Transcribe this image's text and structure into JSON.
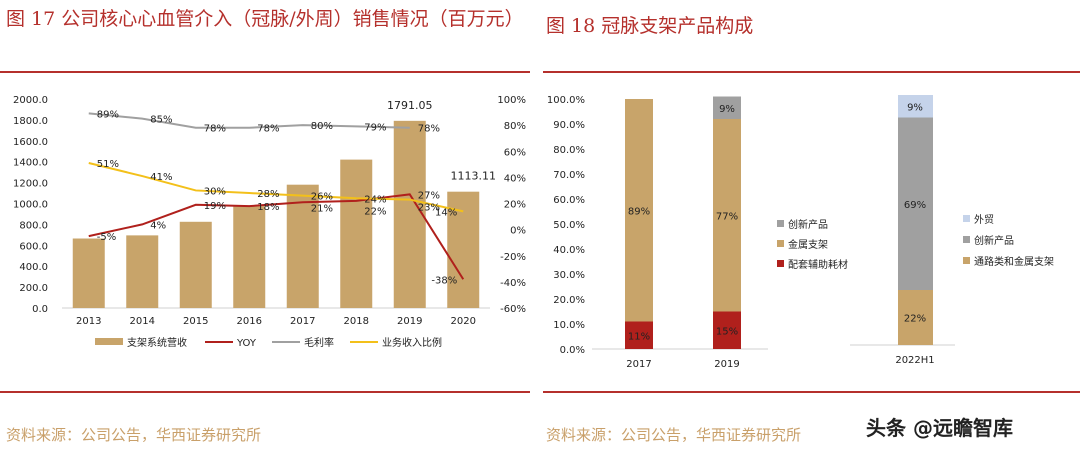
{
  "left": {
    "title": "图 17 公司核心心血管介入（冠脉/外周）销售情况（百万元）",
    "source": "资料来源：公司公告，华西证券研究所"
  },
  "right": {
    "title": "图 18 冠脉支架产品构成",
    "source": "资料来源：公司公告，华西证券研究所"
  },
  "watermark": "头条 @远瞻智库",
  "chart_data": [
    {
      "type": "bar+line",
      "categories": [
        "2013",
        "2014",
        "2015",
        "2016",
        "2017",
        "2018",
        "2019",
        "2020"
      ],
      "ylim": [
        0,
        2000
      ],
      "yticks": [
        "0.0",
        "200.0",
        "400.0",
        "600.0",
        "800.0",
        "1000.0",
        "1200.0",
        "1400.0",
        "1600.0",
        "1800.0",
        "2000.0"
      ],
      "y2lim": [
        -60,
        100
      ],
      "y2ticks": [
        "-60%",
        "-40%",
        "-20%",
        "0%",
        "20%",
        "40%",
        "60%",
        "80%",
        "100%"
      ],
      "series": [
        {
          "name": "支架系统营收",
          "type": "bar",
          "color": "#c8a46a",
          "values": [
            665,
            695,
            825,
            975,
            1180,
            1420,
            1791.05,
            1113.11
          ],
          "labels": [
            "",
            "",
            "",
            "",
            "",
            "",
            "1791.05",
            "1113.11"
          ]
        },
        {
          "name": "YOY",
          "type": "line",
          "color": "#b0201c",
          "values": [
            -5,
            4,
            19,
            18,
            21,
            22,
            27,
            -38
          ]
        },
        {
          "name": "毛利率",
          "type": "line",
          "color": "#a0a0a0",
          "values": [
            89,
            85,
            78,
            78,
            80,
            79,
            78,
            null
          ]
        },
        {
          "name": "业务收入比例",
          "type": "line",
          "color": "#f3c01a",
          "values": [
            51,
            41,
            30,
            28,
            26,
            24,
            23,
            14
          ]
        }
      ],
      "legend": "bottom"
    },
    {
      "type": "stacked-bar",
      "categories": [
        "2017",
        "2019"
      ],
      "ylim": [
        0,
        100
      ],
      "yticks": [
        "0.0%",
        "10.0%",
        "20.0%",
        "30.0%",
        "40.0%",
        "50.0%",
        "60.0%",
        "70.0%",
        "80.0%",
        "90.0%",
        "100.0%"
      ],
      "series": [
        {
          "name": "配套辅助耗材",
          "color": "#b0201c",
          "values": [
            11,
            15
          ]
        },
        {
          "name": "金属支架",
          "color": "#c8a46a",
          "values": [
            89,
            77
          ]
        },
        {
          "name": "创新产品",
          "color": "#a0a0a0",
          "values": [
            0,
            9
          ]
        }
      ],
      "legend": "right"
    },
    {
      "type": "stacked-bar",
      "categories": [
        "2022H1"
      ],
      "ylim": [
        0,
        100
      ],
      "series": [
        {
          "name": "通路类和金属支架",
          "color": "#c8a46a",
          "values": [
            22
          ]
        },
        {
          "name": "创新产品",
          "color": "#a0a0a0",
          "values": [
            69
          ]
        },
        {
          "name": "外贸",
          "color": "#c5d3ea",
          "values": [
            9
          ]
        }
      ],
      "legend": "right"
    }
  ]
}
